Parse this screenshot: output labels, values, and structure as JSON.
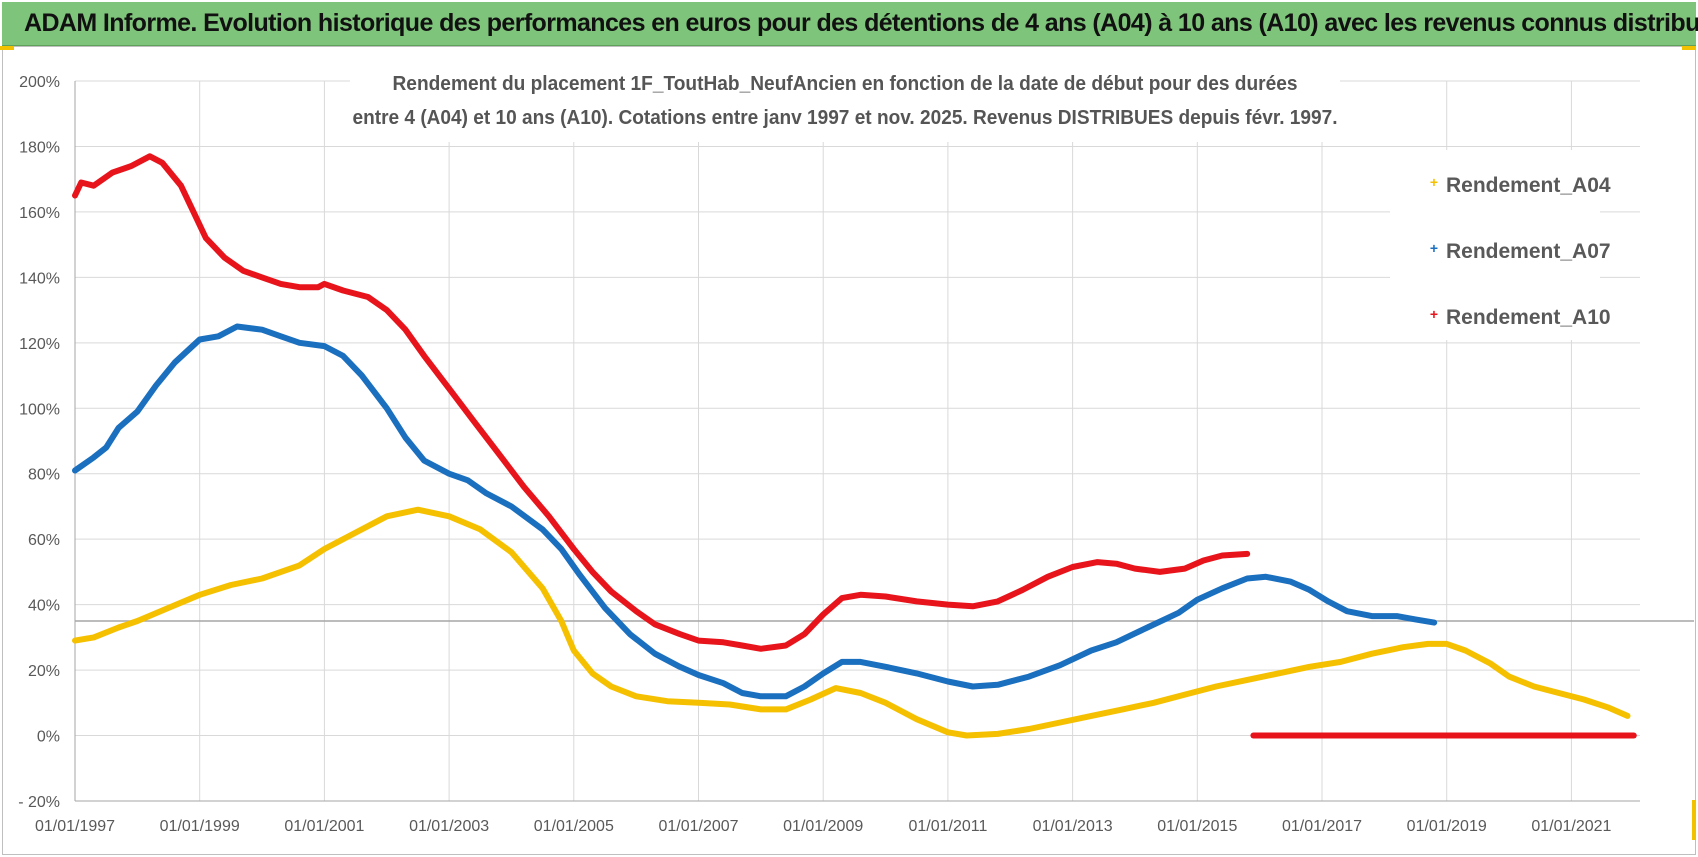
{
  "banner": {
    "title": "ADAM Informe. Evolution historique des performances en euros pour des détentions de 4 ans (A04) à 10 ans (A10) avec les revenus connus distribués"
  },
  "chart_data": {
    "type": "line",
    "title_line1": "Rendement du placement 1F_ToutHab_NeufAncien en fonction de la date de début pour des durées",
    "title_line2": "entre 4 (A04) et 10 ans (A10).  Cotations entre janv 1997 et  nov. 2025. Revenus DISTRIBUES depuis févr. 1997.",
    "x_ticks": [
      "01/01/1997",
      "01/01/1999",
      "01/01/2001",
      "01/01/2003",
      "01/01/2005",
      "01/01/2007",
      "01/01/2009",
      "01/01/2011",
      "01/01/2013",
      "01/01/2015",
      "01/01/2017",
      "01/01/2019",
      "01/01/2021"
    ],
    "xlim": [
      1997,
      2022.1
    ],
    "y_ticks": [
      "- 20%",
      "0%",
      "20%",
      "40%",
      "60%",
      "80%",
      "100%",
      "120%",
      "140%",
      "160%",
      "180%",
      "200%"
    ],
    "ylim": [
      -20,
      200
    ],
    "reference_line_y": 35,
    "grid": true,
    "legend_position": "top-right",
    "series": [
      {
        "name": "Rendement_A04",
        "color": "#f5c000",
        "points": [
          [
            1997.0,
            29
          ],
          [
            1997.3,
            30
          ],
          [
            1997.7,
            33
          ],
          [
            1998.0,
            35
          ],
          [
            1998.5,
            39
          ],
          [
            1999.0,
            43
          ],
          [
            1999.5,
            46
          ],
          [
            2000.0,
            48
          ],
          [
            2000.6,
            52
          ],
          [
            2001.0,
            57
          ],
          [
            2001.5,
            62
          ],
          [
            2002.0,
            67
          ],
          [
            2002.5,
            69
          ],
          [
            2003.0,
            67
          ],
          [
            2003.5,
            63
          ],
          [
            2004.0,
            56
          ],
          [
            2004.5,
            45
          ],
          [
            2004.8,
            35
          ],
          [
            2005.0,
            26
          ],
          [
            2005.3,
            19
          ],
          [
            2005.6,
            15
          ],
          [
            2006.0,
            12
          ],
          [
            2006.5,
            10.5
          ],
          [
            2007.0,
            10
          ],
          [
            2007.5,
            9.5
          ],
          [
            2008.0,
            8
          ],
          [
            2008.4,
            8
          ],
          [
            2008.8,
            11
          ],
          [
            2009.2,
            14.5
          ],
          [
            2009.6,
            13
          ],
          [
            2010.0,
            10
          ],
          [
            2010.5,
            5
          ],
          [
            2011.0,
            1
          ],
          [
            2011.3,
            0
          ],
          [
            2011.8,
            0.5
          ],
          [
            2012.3,
            2
          ],
          [
            2012.8,
            4
          ],
          [
            2013.3,
            6
          ],
          [
            2013.8,
            8
          ],
          [
            2014.3,
            10
          ],
          [
            2014.8,
            12.5
          ],
          [
            2015.3,
            15
          ],
          [
            2015.8,
            17
          ],
          [
            2016.3,
            19
          ],
          [
            2016.8,
            21
          ],
          [
            2017.3,
            22.5
          ],
          [
            2017.8,
            25
          ],
          [
            2018.3,
            27
          ],
          [
            2018.7,
            28
          ],
          [
            2019.0,
            28
          ],
          [
            2019.3,
            26
          ],
          [
            2019.7,
            22
          ],
          [
            2020.0,
            18
          ],
          [
            2020.4,
            15
          ],
          [
            2020.8,
            13
          ],
          [
            2021.2,
            11
          ],
          [
            2021.6,
            8.5
          ],
          [
            2021.9,
            6
          ]
        ]
      },
      {
        "name": "Rendement_A07",
        "color": "#1a6fbf",
        "points": [
          [
            1997.0,
            81
          ],
          [
            1997.3,
            85
          ],
          [
            1997.5,
            88
          ],
          [
            1997.7,
            94
          ],
          [
            1998.0,
            99
          ],
          [
            1998.3,
            107
          ],
          [
            1998.6,
            114
          ],
          [
            1999.0,
            121
          ],
          [
            1999.3,
            122
          ],
          [
            1999.6,
            125
          ],
          [
            2000.0,
            124
          ],
          [
            2000.3,
            122
          ],
          [
            2000.6,
            120
          ],
          [
            2001.0,
            119
          ],
          [
            2001.3,
            116
          ],
          [
            2001.6,
            110
          ],
          [
            2002.0,
            100
          ],
          [
            2002.3,
            91
          ],
          [
            2002.6,
            84
          ],
          [
            2003.0,
            80
          ],
          [
            2003.3,
            78
          ],
          [
            2003.6,
            74
          ],
          [
            2004.0,
            70
          ],
          [
            2004.5,
            63
          ],
          [
            2004.8,
            57
          ],
          [
            2005.1,
            49
          ],
          [
            2005.5,
            39
          ],
          [
            2005.9,
            31
          ],
          [
            2006.3,
            25
          ],
          [
            2006.7,
            21
          ],
          [
            2007.0,
            18.5
          ],
          [
            2007.4,
            16
          ],
          [
            2007.7,
            13
          ],
          [
            2008.0,
            12
          ],
          [
            2008.4,
            12
          ],
          [
            2008.7,
            15
          ],
          [
            2009.0,
            19
          ],
          [
            2009.3,
            22.5
          ],
          [
            2009.6,
            22.5
          ],
          [
            2010.0,
            21
          ],
          [
            2010.5,
            19
          ],
          [
            2011.0,
            16.5
          ],
          [
            2011.4,
            15
          ],
          [
            2011.8,
            15.5
          ],
          [
            2012.3,
            18
          ],
          [
            2012.8,
            21.5
          ],
          [
            2013.3,
            26
          ],
          [
            2013.7,
            28.5
          ],
          [
            2014.2,
            33
          ],
          [
            2014.7,
            37.5
          ],
          [
            2015.0,
            41.5
          ],
          [
            2015.4,
            45
          ],
          [
            2015.8,
            48
          ],
          [
            2016.1,
            48.5
          ],
          [
            2016.5,
            47
          ],
          [
            2016.8,
            44.5
          ],
          [
            2017.1,
            41
          ],
          [
            2017.4,
            38
          ],
          [
            2017.8,
            36.5
          ],
          [
            2018.2,
            36.5
          ],
          [
            2018.5,
            35.5
          ],
          [
            2018.8,
            34.5
          ]
        ]
      },
      {
        "name": "Rendement_A10",
        "color": "#e8141b",
        "points": [
          [
            1997.0,
            165
          ],
          [
            1997.1,
            169
          ],
          [
            1997.3,
            168
          ],
          [
            1997.6,
            172
          ],
          [
            1997.9,
            174
          ],
          [
            1998.2,
            177
          ],
          [
            1998.4,
            175
          ],
          [
            1998.7,
            168
          ],
          [
            1998.9,
            160
          ],
          [
            1999.1,
            152
          ],
          [
            1999.4,
            146
          ],
          [
            1999.7,
            142
          ],
          [
            2000.0,
            140
          ],
          [
            2000.3,
            138
          ],
          [
            2000.6,
            137
          ],
          [
            2000.9,
            137
          ],
          [
            2001.0,
            138
          ],
          [
            2001.3,
            136
          ],
          [
            2001.7,
            134
          ],
          [
            2002.0,
            130
          ],
          [
            2002.3,
            124
          ],
          [
            2002.6,
            116
          ],
          [
            2003.0,
            106
          ],
          [
            2003.4,
            96
          ],
          [
            2003.8,
            86
          ],
          [
            2004.2,
            76
          ],
          [
            2004.6,
            67
          ],
          [
            2005.0,
            57
          ],
          [
            2005.3,
            50
          ],
          [
            2005.6,
            44
          ],
          [
            2006.0,
            38
          ],
          [
            2006.3,
            34
          ],
          [
            2006.7,
            31
          ],
          [
            2007.0,
            29
          ],
          [
            2007.4,
            28.5
          ],
          [
            2007.7,
            27.5
          ],
          [
            2008.0,
            26.5
          ],
          [
            2008.4,
            27.5
          ],
          [
            2008.7,
            31
          ],
          [
            2009.0,
            37
          ],
          [
            2009.3,
            42
          ],
          [
            2009.6,
            43
          ],
          [
            2010.0,
            42.5
          ],
          [
            2010.5,
            41
          ],
          [
            2011.0,
            40
          ],
          [
            2011.4,
            39.5
          ],
          [
            2011.8,
            41
          ],
          [
            2012.2,
            44.5
          ],
          [
            2012.6,
            48.5
          ],
          [
            2013.0,
            51.5
          ],
          [
            2013.4,
            53
          ],
          [
            2013.7,
            52.5
          ],
          [
            2014.0,
            51
          ],
          [
            2014.4,
            50
          ],
          [
            2014.8,
            51
          ],
          [
            2015.1,
            53.5
          ],
          [
            2015.4,
            55
          ],
          [
            2015.8,
            55.5
          ]
        ]
      },
      {
        "name": "",
        "color": "#e8141b",
        "points": [
          [
            2015.9,
            0
          ],
          [
            2022.0,
            0
          ]
        ]
      }
    ],
    "legend": [
      {
        "label": "Rendement_A04",
        "color": "#f5c000"
      },
      {
        "label": "Rendement_A07",
        "color": "#1a6fbf"
      },
      {
        "label": "Rendement_A10",
        "color": "#e8141b"
      }
    ]
  }
}
